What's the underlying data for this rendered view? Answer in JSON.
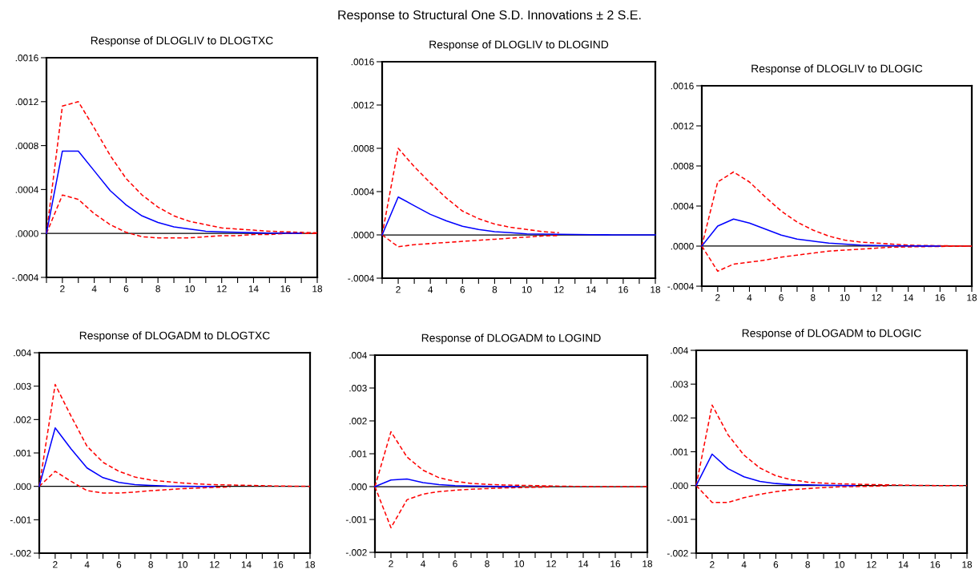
{
  "chart_data": [
    {
      "type": "line",
      "title": "Response of DLOGLIV to DLOGTXC",
      "annotations": [
        "Response to Structural One S.D. Innovations ± 2 S.E."
      ],
      "x": [
        1,
        2,
        3,
        4,
        5,
        6,
        7,
        8,
        9,
        10,
        11,
        12,
        13,
        14,
        15,
        16,
        17,
        18
      ],
      "series": [
        {
          "color": "#0000ff",
          "line_style": "solid",
          "values": [
            0,
            0.00075,
            0.00075,
            0.00057,
            0.00039,
            0.00026,
            0.00016,
            0.0001,
            6e-05,
            4e-05,
            2e-05,
            1.5e-05,
            1e-05,
            6e-06,
            4e-06,
            3e-06,
            2e-06,
            null
          ]
        },
        {
          "color": "#ff0000",
          "line_style": "dashed",
          "values": [
            0,
            0.00116,
            0.0012,
            0.00096,
            0.00071,
            0.0005,
            0.00035,
            0.00024,
            0.00016,
            0.00011,
            8e-05,
            5e-05,
            4e-05,
            3e-05,
            2e-05,
            1.5e-05,
            1e-05,
            5e-06
          ]
        },
        {
          "color": "#ff0000",
          "line_style": "dashed",
          "values": [
            0,
            0.00035,
            0.00031,
            0.00018,
            8e-05,
            1e-05,
            -3e-05,
            -4e-05,
            -4e-05,
            -4e-05,
            -3e-05,
            -2e-05,
            -2e-05,
            -1e-05,
            -1e-05,
            0,
            0,
            0
          ]
        }
      ],
      "xlim": [
        1,
        18
      ],
      "xticks": [
        {
          "value": 1,
          "label": null
        },
        2,
        {
          "value": 3,
          "label": null
        },
        4,
        {
          "value": 5,
          "label": null
        },
        6,
        {
          "value": 7,
          "label": null
        },
        8,
        {
          "value": 9,
          "label": null
        },
        10,
        {
          "value": 11,
          "label": null
        },
        12,
        {
          "value": 13,
          "label": null
        },
        14,
        {
          "value": 15,
          "label": null
        },
        16,
        {
          "value": 17,
          "label": null
        },
        18
      ],
      "ylim": [
        -0.0004,
        0.0016
      ],
      "yticks": [
        {
          "value": -0.0004,
          "label": "-.0004"
        },
        {
          "value": 0,
          "label": ".0000"
        },
        {
          "value": 0.0004,
          "label": ".0004"
        },
        {
          "value": 0.0008,
          "label": ".0008"
        },
        {
          "value": 0.0012,
          "label": ".0012"
        },
        {
          "value": 0.0016,
          "label": ".0016"
        }
      ],
      "ref_lines": [
        {
          "axis": "y",
          "value": 0,
          "color": "#000000"
        }
      ],
      "grid": false,
      "legend": false
    },
    {
      "type": "line",
      "title": "Response of DLOGLIV to DLOGIND",
      "x": [
        1,
        2,
        3,
        4,
        5,
        6,
        7,
        8,
        9,
        10,
        11,
        12,
        13,
        14,
        15,
        16,
        17,
        18
      ],
      "series": [
        {
          "color": "#0000ff",
          "line_style": "solid",
          "values": [
            0,
            0.00035,
            0.00027,
            0.00019,
            0.00013,
            8e-05,
            5e-05,
            3e-05,
            2e-05,
            1e-05,
            8e-06,
            5e-06,
            3e-06,
            2e-06,
            1e-06,
            0,
            0,
            0
          ]
        },
        {
          "color": "#ff0000",
          "line_style": "dashed",
          "values": [
            0,
            0.0008,
            0.00063,
            0.00048,
            0.00034,
            0.00022,
            0.00015,
            0.0001,
            7e-05,
            5e-05,
            3e-05,
            2e-05,
            null,
            null,
            null,
            null,
            null,
            null
          ]
        },
        {
          "color": "#ff0000",
          "line_style": "dashed",
          "values": [
            0,
            -0.00011,
            -9e-05,
            -8e-05,
            -7e-05,
            -6e-05,
            -5e-05,
            -4e-05,
            -3e-05,
            -2e-05,
            -1e-05,
            -6e-06,
            null,
            null,
            null,
            null,
            null,
            null
          ]
        }
      ],
      "xlim": [
        1,
        18
      ],
      "xticks": [
        {
          "value": 1,
          "label": null
        },
        2,
        {
          "value": 3,
          "label": null
        },
        4,
        {
          "value": 5,
          "label": null
        },
        6,
        {
          "value": 7,
          "label": null
        },
        8,
        {
          "value": 9,
          "label": null
        },
        10,
        {
          "value": 11,
          "label": null
        },
        12,
        {
          "value": 13,
          "label": null
        },
        14,
        {
          "value": 15,
          "label": null
        },
        16,
        {
          "value": 17,
          "label": null
        },
        18
      ],
      "ylim": [
        -0.0004,
        0.0016
      ],
      "yticks": [
        {
          "value": -0.0004,
          "label": "-.0004"
        },
        {
          "value": 0,
          "label": ".0000"
        },
        {
          "value": 0.0004,
          "label": ".0004"
        },
        {
          "value": 0.0008,
          "label": ".0008"
        },
        {
          "value": 0.0012,
          "label": ".0012"
        },
        {
          "value": 0.0016,
          "label": ".0016"
        }
      ],
      "ref_lines": [
        {
          "axis": "y",
          "value": 0,
          "color": "#000000"
        }
      ],
      "grid": false,
      "legend": false
    },
    {
      "type": "line",
      "title": "Response of DLOGLIV to DLOGIC",
      "x": [
        1,
        2,
        3,
        4,
        5,
        6,
        7,
        8,
        9,
        10,
        11,
        12,
        13,
        14,
        15,
        16,
        17,
        18
      ],
      "series": [
        {
          "color": "#0000ff",
          "line_style": "solid",
          "values": [
            0,
            0.0002,
            0.00027,
            0.00023,
            0.00017,
            0.00011,
            7e-05,
            5e-05,
            3e-05,
            2e-05,
            1e-05,
            6e-06,
            4e-06,
            2e-06,
            1e-06,
            0,
            null,
            null
          ]
        },
        {
          "color": "#ff0000",
          "line_style": "dashed",
          "values": [
            0,
            0.00064,
            0.00074,
            0.00064,
            0.00049,
            0.00035,
            0.00024,
            0.00016,
            0.0001,
            6e-05,
            4e-05,
            3e-05,
            2e-05,
            1e-05,
            6e-06,
            4e-06,
            2e-06,
            0
          ]
        },
        {
          "color": "#ff0000",
          "line_style": "dashed",
          "values": [
            0,
            -0.00025,
            -0.00018,
            -0.00016,
            -0.00014,
            -0.00011,
            -9e-05,
            -7e-05,
            -5e-05,
            -4e-05,
            -3e-05,
            -2e-05,
            -1e-05,
            -8e-06,
            -5e-06,
            -3e-06,
            -2e-06,
            0
          ]
        }
      ],
      "xlim": [
        1,
        18
      ],
      "xticks": [
        {
          "value": 1,
          "label": null
        },
        2,
        {
          "value": 3,
          "label": null
        },
        4,
        {
          "value": 5,
          "label": null
        },
        6,
        {
          "value": 7,
          "label": null
        },
        8,
        {
          "value": 9,
          "label": null
        },
        10,
        {
          "value": 11,
          "label": null
        },
        12,
        {
          "value": 13,
          "label": null
        },
        14,
        {
          "value": 15,
          "label": null
        },
        16,
        {
          "value": 17,
          "label": null
        },
        18
      ],
      "ylim": [
        -0.0004,
        0.0016
      ],
      "yticks": [
        {
          "value": -0.0004,
          "label": "-.0004"
        },
        {
          "value": 0,
          "label": ".0000"
        },
        {
          "value": 0.0004,
          "label": ".0004"
        },
        {
          "value": 0.0008,
          "label": ".0008"
        },
        {
          "value": 0.0012,
          "label": ".0012"
        },
        {
          "value": 0.0016,
          "label": ".0016"
        }
      ],
      "ref_lines": [
        {
          "axis": "y",
          "value": 0,
          "color": "#000000"
        }
      ],
      "grid": false,
      "legend": false
    },
    {
      "type": "line",
      "title": "Response of DLOGADM to DLOGTXC",
      "x": [
        1,
        2,
        3,
        4,
        5,
        6,
        7,
        8,
        9,
        10,
        11,
        12,
        13,
        14,
        15,
        16,
        17,
        18
      ],
      "series": [
        {
          "color": "#0000ff",
          "line_style": "solid",
          "values": [
            0,
            0.00175,
            0.00112,
            0.00055,
            0.00026,
            0.00012,
            5e-05,
            3e-05,
            1e-05,
            5e-06,
            0,
            0,
            null,
            null,
            null,
            null,
            null,
            null
          ]
        },
        {
          "color": "#ff0000",
          "line_style": "dashed",
          "values": [
            0,
            0.00305,
            0.0021,
            0.0012,
            0.00072,
            0.00045,
            0.00028,
            0.00019,
            0.00014,
            0.0001,
            7e-05,
            5e-05,
            4e-05,
            3e-05,
            2e-05,
            1e-05,
            5e-06,
            0
          ]
        },
        {
          "color": "#ff0000",
          "line_style": "dashed",
          "values": [
            0,
            0.00045,
            0.00015,
            -0.00013,
            -0.0002,
            -0.0002,
            -0.00017,
            -0.00013,
            -0.0001,
            -7e-05,
            -5e-05,
            -3e-05,
            -2e-05,
            null,
            null,
            null,
            null,
            null
          ]
        }
      ],
      "xlim": [
        1,
        18
      ],
      "xticks": [
        {
          "value": 1,
          "label": null
        },
        2,
        {
          "value": 3,
          "label": null
        },
        4,
        {
          "value": 5,
          "label": null
        },
        6,
        {
          "value": 7,
          "label": null
        },
        8,
        {
          "value": 9,
          "label": null
        },
        10,
        {
          "value": 11,
          "label": null
        },
        12,
        {
          "value": 13,
          "label": null
        },
        14,
        {
          "value": 15,
          "label": null
        },
        16,
        {
          "value": 17,
          "label": null
        },
        18
      ],
      "ylim": [
        -0.002,
        0.004
      ],
      "yticks": [
        {
          "value": -0.002,
          "label": "-.002"
        },
        {
          "value": -0.001,
          "label": "-.001"
        },
        {
          "value": 0,
          "label": ".000"
        },
        {
          "value": 0.001,
          "label": ".001"
        },
        {
          "value": 0.002,
          "label": ".002"
        },
        {
          "value": 0.003,
          "label": ".003"
        },
        {
          "value": 0.004,
          "label": ".004"
        }
      ],
      "ref_lines": [
        {
          "axis": "y",
          "value": 0,
          "color": "#000000"
        }
      ],
      "grid": false,
      "legend": false
    },
    {
      "type": "line",
      "title": "Response of DLOGADM to LOGIND",
      "x": [
        1,
        2,
        3,
        4,
        5,
        6,
        7,
        8,
        9,
        10,
        11,
        12,
        13,
        14,
        15,
        16,
        17,
        18
      ],
      "series": [
        {
          "color": "#0000ff",
          "line_style": "solid",
          "values": [
            0,
            0.0002,
            0.00023,
            0.00012,
            6e-05,
            3e-05,
            2e-05,
            1e-05,
            0,
            0,
            null,
            null,
            null,
            null,
            null,
            null,
            null,
            null
          ]
        },
        {
          "color": "#ff0000",
          "line_style": "dashed",
          "values": [
            0,
            0.00167,
            0.0009,
            0.0005,
            0.00027,
            0.00016,
            0.0001,
            7e-05,
            5e-05,
            4e-05,
            3e-05,
            2e-05,
            1e-05,
            5e-06,
            0,
            0,
            0,
            0
          ]
        },
        {
          "color": "#ff0000",
          "line_style": "dashed",
          "values": [
            0,
            -0.00125,
            -0.0004,
            -0.00023,
            -0.00015,
            -0.00011,
            -8e-05,
            -6e-05,
            -4e-05,
            -3e-05,
            -2e-05,
            -1e-05,
            null,
            null,
            null,
            null,
            null,
            null
          ]
        }
      ],
      "xlim": [
        1,
        18
      ],
      "xticks": [
        {
          "value": 1,
          "label": null
        },
        2,
        {
          "value": 3,
          "label": null
        },
        4,
        {
          "value": 5,
          "label": null
        },
        6,
        {
          "value": 7,
          "label": null
        },
        8,
        {
          "value": 9,
          "label": null
        },
        10,
        {
          "value": 11,
          "label": null
        },
        12,
        {
          "value": 13,
          "label": null
        },
        14,
        {
          "value": 15,
          "label": null
        },
        16,
        {
          "value": 17,
          "label": null
        },
        18
      ],
      "ylim": [
        -0.002,
        0.004
      ],
      "yticks": [
        {
          "value": -0.002,
          "label": "-.002"
        },
        {
          "value": -0.001,
          "label": "-.001"
        },
        {
          "value": 0,
          "label": ".000"
        },
        {
          "value": 0.001,
          "label": ".001"
        },
        {
          "value": 0.002,
          "label": ".002"
        },
        {
          "value": 0.003,
          "label": ".003"
        },
        {
          "value": 0.004,
          "label": ".004"
        }
      ],
      "ref_lines": [
        {
          "axis": "y",
          "value": 0,
          "color": "#000000"
        }
      ],
      "grid": false,
      "legend": false
    },
    {
      "type": "line",
      "title": "Response of DLOGADM to DLOGIC",
      "x": [
        1,
        2,
        3,
        4,
        5,
        6,
        7,
        8,
        9,
        10,
        11,
        12,
        13,
        14,
        15,
        16,
        17,
        18
      ],
      "series": [
        {
          "color": "#0000ff",
          "line_style": "solid",
          "values": [
            0,
            0.00093,
            0.0005,
            0.00026,
            0.00012,
            6e-05,
            3e-05,
            2e-05,
            1e-05,
            5e-06,
            0,
            null,
            null,
            null,
            null,
            null,
            null,
            null
          ]
        },
        {
          "color": "#ff0000",
          "line_style": "dashed",
          "values": [
            0,
            0.00238,
            0.0015,
            0.0009,
            0.00052,
            0.00029,
            0.00017,
            0.0001,
            7e-05,
            5e-05,
            4e-05,
            3e-05,
            2e-05,
            1e-05,
            5e-06,
            0,
            0,
            0
          ]
        },
        {
          "color": "#ff0000",
          "line_style": "dashed",
          "values": [
            0,
            -0.0005,
            -0.0005,
            -0.00036,
            -0.00026,
            -0.00018,
            -0.00012,
            -9e-05,
            -6e-05,
            -4e-05,
            -3e-05,
            -2e-05,
            -1e-05,
            null,
            null,
            null,
            null,
            null
          ]
        }
      ],
      "xlim": [
        1,
        18
      ],
      "xticks": [
        {
          "value": 1,
          "label": null
        },
        2,
        {
          "value": 3,
          "label": null
        },
        4,
        {
          "value": 5,
          "label": null
        },
        6,
        {
          "value": 7,
          "label": null
        },
        8,
        {
          "value": 9,
          "label": null
        },
        10,
        {
          "value": 11,
          "label": null
        },
        12,
        {
          "value": 13,
          "label": null
        },
        14,
        {
          "value": 15,
          "label": null
        },
        16,
        {
          "value": 17,
          "label": null
        },
        18
      ],
      "ylim": [
        -0.002,
        0.004
      ],
      "yticks": [
        {
          "value": -0.002,
          "label": "-.002"
        },
        {
          "value": -0.001,
          "label": "-.001"
        },
        {
          "value": 0,
          "label": ".000"
        },
        {
          "value": 0.001,
          "label": ".001"
        },
        {
          "value": 0.002,
          "label": ".002"
        },
        {
          "value": 0.003,
          "label": ".003"
        },
        {
          "value": 0.004,
          "label": ".004"
        }
      ],
      "ref_lines": [
        {
          "axis": "y",
          "value": 0,
          "color": "#000000"
        }
      ],
      "grid": false,
      "legend": false
    }
  ]
}
